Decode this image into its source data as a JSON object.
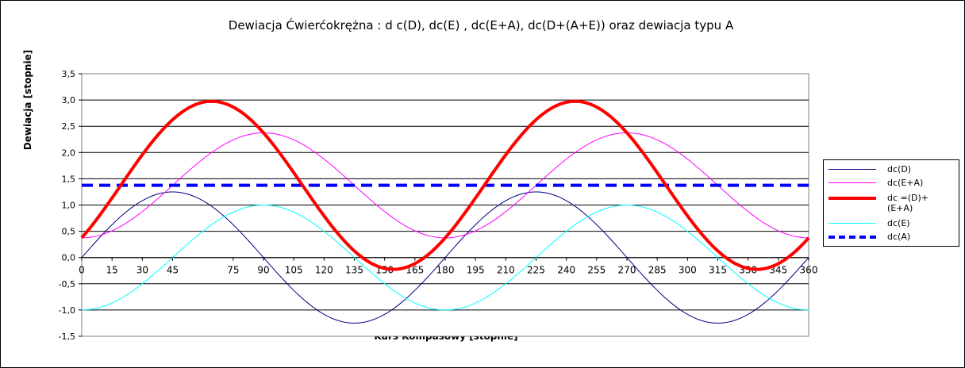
{
  "chart_data": {
    "type": "line",
    "title": "Dewiacja Ćwierćokrężna : d c(D), dc(E) , dc(E+A), dc(D+(A+E)) oraz dewiacja typu A",
    "xlabel": "Kurs Kompasowy  [stopnie]",
    "ylabel": "Dewiacja  [stopnie]",
    "xlim": [
      0,
      360
    ],
    "ylim": [
      -1.5,
      3.5
    ],
    "x_ticks": [
      "0",
      "15",
      "30",
      "45",
      "75",
      "90",
      "105",
      "120",
      "135",
      "150",
      "165",
      "180",
      "195",
      "210",
      "225",
      "240",
      "255",
      "270",
      "285",
      "300",
      "315",
      "330",
      "345",
      "360"
    ],
    "y_ticks": [
      "-1,5",
      "-1,0",
      "-0,5",
      "0,0",
      "0,5",
      "1,0",
      "1,5",
      "2,0",
      "2,5",
      "3,0",
      "3,5"
    ],
    "grid": "horizontal",
    "legend_position": "right",
    "series": [
      {
        "name": "dc(D)",
        "color": "#000080",
        "formula": "1.25*sin(2x)",
        "amplitude": 1.25,
        "offset": 0,
        "period": 180,
        "phase_deg": 0
      },
      {
        "name": "dc(E+A)",
        "color": "#ff00ff",
        "formula": "1.375 - 1.0*cos(2x)",
        "amplitude": 1.0,
        "offset": 1.375,
        "period": 180,
        "phase_deg": 90
      },
      {
        "name": "dc =(D)+\n(E+A)",
        "color": "#ff0000",
        "formula": "1.375 + 1.25*sin(2x) - 1.0*cos(2x)"
      },
      {
        "name": "dc(E)",
        "color": "#00ffff",
        "formula": "-1.0*cos(2x)",
        "amplitude": 1.0,
        "offset": 0,
        "period": 180,
        "phase_deg": 90
      },
      {
        "name": "dc(A)",
        "color": "#0000ff",
        "formula": "1.375 constant",
        "value": 1.375
      }
    ],
    "values_at_ticks": {
      "x": [
        0,
        45,
        90,
        135,
        180,
        225,
        270,
        315,
        360
      ],
      "dc(D)": [
        0.0,
        1.25,
        0.0,
        -1.25,
        0.0,
        1.25,
        0.0,
        -1.25,
        0.0
      ],
      "dc(E)": [
        -1.0,
        0.0,
        1.0,
        0.0,
        -1.0,
        0.0,
        1.0,
        0.0,
        -1.0
      ],
      "dc(E+A)": [
        0.375,
        1.375,
        2.375,
        1.375,
        0.375,
        1.375,
        2.375,
        1.375,
        0.375
      ],
      "dc =(D)+(E+A)": [
        0.375,
        2.625,
        2.375,
        0.125,
        0.375,
        2.625,
        2.375,
        0.125,
        0.375
      ],
      "dc(A)": [
        1.375,
        1.375,
        1.375,
        1.375,
        1.375,
        1.375,
        1.375,
        1.375,
        1.375
      ]
    }
  },
  "legend": {
    "items": [
      {
        "label": "dc(D)",
        "color": "#000080",
        "style": "thin"
      },
      {
        "label": "dc(E+A)",
        "color": "#ff00ff",
        "style": "thin"
      },
      {
        "label": "dc =(D)+ (E+A)",
        "color": "#ff0000",
        "style": "thick"
      },
      {
        "label": "dc(E)",
        "color": "#00ffff",
        "style": "thin"
      },
      {
        "label": "dc(A)",
        "color": "#0000ff",
        "style": "dashed"
      }
    ]
  }
}
